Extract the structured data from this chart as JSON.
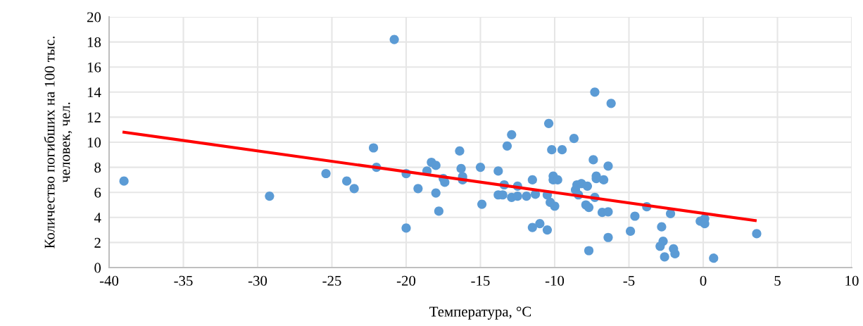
{
  "chart_data": {
    "type": "scatter",
    "xlabel": "Температура, °C",
    "ylabel": "Количество погибших на 100 тыс.\nчеловек, чел.",
    "xlim": [
      -40,
      10
    ],
    "xticks": [
      -40,
      -35,
      -30,
      -25,
      -20,
      -15,
      -10,
      -5,
      0,
      5,
      10
    ],
    "ylim": [
      0,
      20
    ],
    "yticks": [
      0,
      2,
      4,
      6,
      8,
      10,
      12,
      14,
      16,
      18,
      20
    ],
    "grid": true,
    "series": [
      {
        "color": "#5b9bd5",
        "marker": "circle",
        "x": [
          -39.0,
          -29.2,
          -25.4,
          -24.0,
          -23.5,
          -22.2,
          -22.0,
          -20.8,
          -20.0,
          -19.2,
          -20.0,
          -18.3,
          -18.0,
          -18.6,
          -18.0,
          -17.8,
          -17.5,
          -17.4,
          -16.4,
          -16.3,
          -16.2,
          -16.2,
          -15.0,
          -14.9,
          -13.8,
          -13.2,
          -12.9,
          -13.4,
          -13.8,
          -13.5,
          -12.5,
          -12.9,
          -12.5,
          -11.9,
          -11.5,
          -11.3,
          -11.5,
          -11.0,
          -10.5,
          -10.4,
          -10.2,
          -9.5,
          -10.1,
          -10.1,
          -9.8,
          -10.5,
          -10.3,
          -10.0,
          -8.7,
          -8.6,
          -8.5,
          -8.2,
          -7.8,
          -8.4,
          -7.3,
          -7.9,
          -7.7,
          -7.7,
          -7.4,
          -7.2,
          -7.2,
          -6.7,
          -6.4,
          -6.8,
          -6.4,
          -6.4,
          -6.2,
          -7.3,
          -4.9,
          -4.6,
          -3.8,
          -2.8,
          -2.7,
          -2.9,
          -2.6,
          -2.0,
          -1.9,
          -2.2,
          -0.2,
          0.1,
          0.1,
          0.7,
          3.6
        ],
        "values": [
          6.9,
          5.7,
          7.5,
          6.9,
          6.3,
          9.55,
          8.0,
          18.2,
          7.5,
          6.3,
          3.15,
          8.4,
          8.15,
          7.7,
          5.95,
          4.5,
          7.1,
          6.8,
          9.3,
          7.9,
          7.25,
          7.0,
          8.0,
          5.05,
          7.7,
          9.7,
          10.6,
          6.6,
          5.8,
          5.8,
          6.5,
          5.6,
          5.7,
          5.7,
          7.0,
          5.85,
          3.2,
          3.5,
          3.0,
          11.5,
          9.4,
          9.4,
          7.3,
          7.0,
          7.0,
          5.8,
          5.2,
          4.9,
          10.3,
          6.2,
          6.6,
          6.7,
          6.5,
          5.8,
          5.6,
          5.0,
          4.8,
          1.35,
          8.6,
          7.3,
          7.1,
          7.0,
          8.1,
          4.4,
          4.45,
          2.4,
          13.1,
          14.0,
          2.9,
          4.1,
          4.85,
          3.25,
          2.1,
          1.7,
          0.85,
          1.5,
          1.1,
          4.3,
          3.7,
          3.9,
          3.5,
          0.75,
          2.7
        ]
      },
      {
        "type": "line",
        "color": "#ff0000",
        "x": [
          -39.0,
          3.5
        ],
        "values": [
          10.8,
          3.75
        ]
      }
    ]
  }
}
